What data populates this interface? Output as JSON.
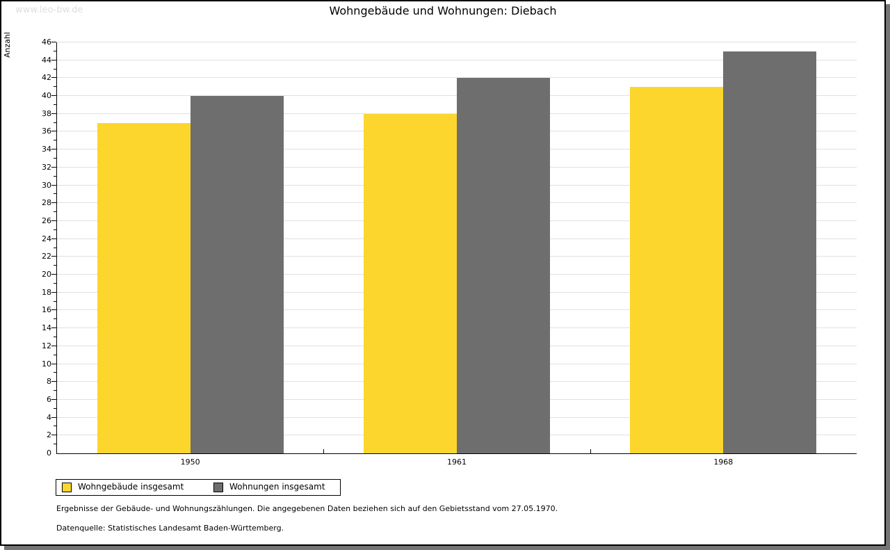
{
  "watermark": "www.leo-bw.de",
  "title": "Wohngebäude und Wohnungen: Diebach",
  "chart_data": {
    "type": "bar",
    "title": "Wohngebäude und Wohnungen: Diebach",
    "categories": [
      "1950",
      "1961",
      "1968"
    ],
    "series": [
      {
        "name": "Wohngebäude insgesamt",
        "values": [
          37,
          38,
          41
        ],
        "color": "#FDD62D"
      },
      {
        "name": "Wohnungen insgesamt",
        "values": [
          40,
          42,
          45
        ],
        "color": "#6E6E6E"
      }
    ],
    "xlabel": "",
    "ylabel": "Anzahl",
    "ylim": [
      0,
      46
    ],
    "ytick_step": 2,
    "yticks": [
      0,
      2,
      4,
      6,
      8,
      10,
      12,
      14,
      16,
      18,
      20,
      22,
      24,
      26,
      28,
      30,
      32,
      34,
      36,
      38,
      40,
      42,
      44,
      46
    ],
    "grid": true,
    "legend_position": "bottom-left"
  },
  "footnotes": [
    "Ergebnisse der Gebäude- und Wohnungszählungen. Die angegebenen Daten beziehen sich auf den Gebietsstand vom 27.05.1970.",
    "Datenquelle: Statistisches Landesamt Baden-Württemberg."
  ],
  "colors": {
    "background": "#ffffff",
    "axis": "#000000",
    "grid": "#e0e0e0",
    "watermark": "#dedede",
    "shadow": "#757575",
    "series_yellow": "#FDD62D",
    "series_gray": "#6E6E6E"
  }
}
